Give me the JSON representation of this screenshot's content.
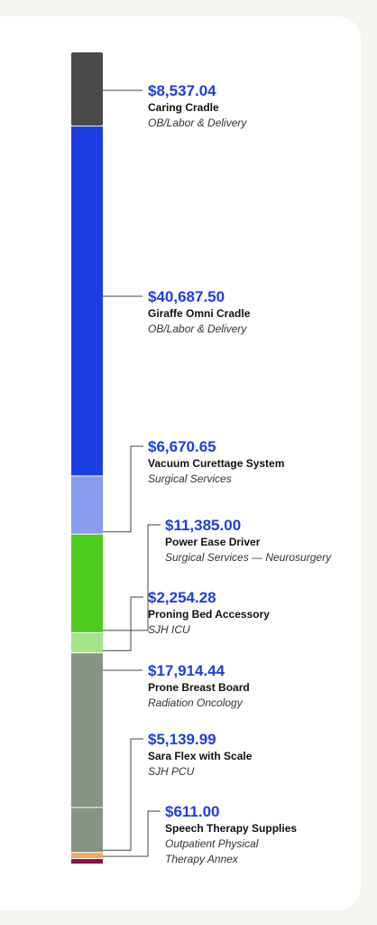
{
  "chart_data": {
    "type": "stacked-bar",
    "title": "",
    "segments": [
      {
        "value": 8537.04,
        "label": "$8,537.04",
        "name": "Caring Cradle",
        "dept": [
          "OB/Labor & Delivery"
        ],
        "color": "#4a4a4a"
      },
      {
        "value": 40687.5,
        "label": "$40,687.50",
        "name": "Giraffe Omni Cradle",
        "dept": [
          "OB/Labor & Delivery"
        ],
        "color": "#1b3ee3"
      },
      {
        "value": 6670.65,
        "label": "$6,670.65",
        "name": "Vacuum Curettage System",
        "dept": [
          "Surgical Services"
        ],
        "color": "#8a9aec"
      },
      {
        "value": 11385.0,
        "label": "$11,385.00",
        "name": "Power Ease Driver",
        "dept": [
          "Surgical Services — Neurosurgery"
        ],
        "color": "#4ccb1c"
      },
      {
        "value": 2254.28,
        "label": "$2,254.28",
        "name": "Proning Bed Accessory",
        "dept": [
          "SJH ICU"
        ],
        "color": "#a5e58a"
      },
      {
        "value": 17914.44,
        "label": "$17,914.44",
        "name": "Prone Breast Board",
        "dept": [
          "Radiation Oncology"
        ],
        "color": "#859583"
      },
      {
        "value": 5139.99,
        "label": "$5,139.99",
        "name": "Sara Flex with Scale",
        "dept": [
          "SJH PCU"
        ],
        "color": "#859583"
      },
      {
        "value": 611.0,
        "label": "$611.00",
        "name": "Speech Therapy Supplies",
        "dept": [
          "Outpatient Physical",
          "Therapy Annex"
        ],
        "color": "#f6a761"
      },
      {
        "value": 0,
        "label": "",
        "name": "",
        "dept": [],
        "color": "#8c1446"
      }
    ],
    "amount_color": "#1d3fe0"
  }
}
